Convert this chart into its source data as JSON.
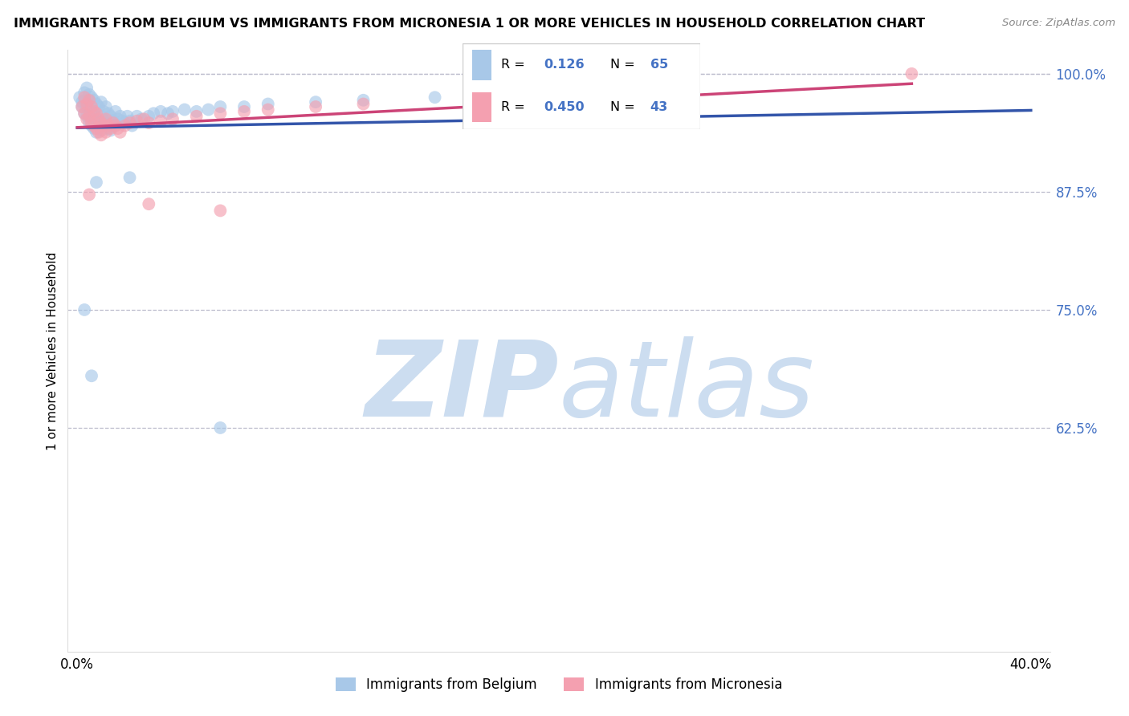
{
  "title": "IMMIGRANTS FROM BELGIUM VS IMMIGRANTS FROM MICRONESIA 1 OR MORE VEHICLES IN HOUSEHOLD CORRELATION CHART",
  "source": "Source: ZipAtlas.com",
  "ylabel": "1 or more Vehicles in Household",
  "legend_label_1": "Immigrants from Belgium",
  "legend_label_2": "Immigrants from Micronesia",
  "R1": 0.126,
  "N1": 65,
  "R2": 0.45,
  "N2": 43,
  "color1": "#a8c8e8",
  "color2": "#f4a0b0",
  "color1_line": "#3355aa",
  "color2_line": "#cc4477",
  "xlim": [
    -0.004,
    0.408
  ],
  "ylim": [
    0.388,
    1.025
  ],
  "yticks": [
    0.625,
    0.75,
    0.875,
    1.0
  ],
  "ytick_labels": [
    "62.5%",
    "75.0%",
    "87.5%",
    "100.0%"
  ],
  "xtick_labels": [
    "0.0%",
    "40.0%"
  ],
  "xtick_positions": [
    0.0,
    0.4
  ],
  "background_color": "#ffffff",
  "grid_color": "#bbbbcc",
  "watermark_zip": "ZIP",
  "watermark_atlas": "atlas",
  "watermark_color": "#ccddf0",
  "belgium_x": [
    0.001,
    0.002,
    0.002,
    0.003,
    0.003,
    0.003,
    0.004,
    0.004,
    0.004,
    0.005,
    0.005,
    0.005,
    0.006,
    0.006,
    0.006,
    0.007,
    0.007,
    0.007,
    0.008,
    0.008,
    0.008,
    0.009,
    0.009,
    0.01,
    0.01,
    0.01,
    0.011,
    0.011,
    0.012,
    0.012,
    0.013,
    0.013,
    0.014,
    0.014,
    0.015,
    0.016,
    0.016,
    0.017,
    0.018,
    0.019,
    0.02,
    0.021,
    0.022,
    0.023,
    0.025,
    0.027,
    0.03,
    0.032,
    0.035,
    0.038,
    0.04,
    0.045,
    0.05,
    0.055,
    0.06,
    0.07,
    0.08,
    0.1,
    0.12,
    0.15,
    0.003,
    0.006,
    0.008,
    0.022,
    0.06
  ],
  "belgium_y": [
    0.975,
    0.97,
    0.965,
    0.98,
    0.972,
    0.958,
    0.985,
    0.965,
    0.955,
    0.978,
    0.962,
    0.948,
    0.975,
    0.96,
    0.945,
    0.972,
    0.955,
    0.942,
    0.968,
    0.952,
    0.938,
    0.965,
    0.948,
    0.97,
    0.955,
    0.94,
    0.96,
    0.945,
    0.965,
    0.948,
    0.958,
    0.942,
    0.955,
    0.94,
    0.95,
    0.96,
    0.945,
    0.952,
    0.955,
    0.95,
    0.948,
    0.955,
    0.95,
    0.945,
    0.955,
    0.952,
    0.955,
    0.958,
    0.96,
    0.958,
    0.96,
    0.962,
    0.96,
    0.962,
    0.965,
    0.965,
    0.968,
    0.97,
    0.972,
    0.975,
    0.75,
    0.68,
    0.885,
    0.89,
    0.625
  ],
  "micronesia_x": [
    0.002,
    0.003,
    0.003,
    0.004,
    0.004,
    0.005,
    0.005,
    0.006,
    0.006,
    0.007,
    0.007,
    0.008,
    0.008,
    0.009,
    0.009,
    0.01,
    0.01,
    0.011,
    0.012,
    0.012,
    0.013,
    0.014,
    0.015,
    0.016,
    0.017,
    0.018,
    0.02,
    0.022,
    0.025,
    0.028,
    0.03,
    0.035,
    0.04,
    0.05,
    0.06,
    0.07,
    0.08,
    0.1,
    0.12,
    0.005,
    0.03,
    0.06,
    0.35
  ],
  "micronesia_y": [
    0.965,
    0.975,
    0.958,
    0.968,
    0.952,
    0.972,
    0.955,
    0.965,
    0.948,
    0.96,
    0.945,
    0.958,
    0.942,
    0.952,
    0.938,
    0.948,
    0.935,
    0.945,
    0.952,
    0.938,
    0.945,
    0.942,
    0.948,
    0.945,
    0.942,
    0.938,
    0.945,
    0.948,
    0.95,
    0.952,
    0.948,
    0.95,
    0.952,
    0.955,
    0.958,
    0.96,
    0.962,
    0.965,
    0.968,
    0.872,
    0.862,
    0.855,
    1.0
  ]
}
